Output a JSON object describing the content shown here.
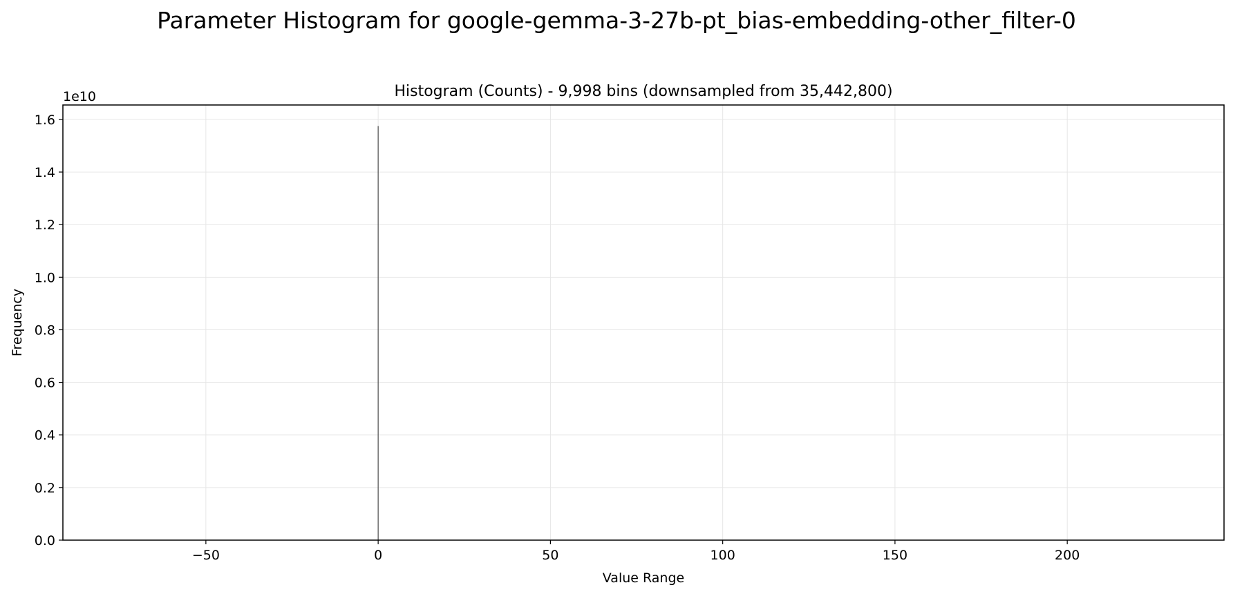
{
  "figure_title": "Parameter Histogram for google-gemma-3-27b-pt_bias-embedding-other_filter-0",
  "chart_data": {
    "type": "bar",
    "title": "Histogram (Counts) - 9,998 bins (downsampled from 35,442,800)",
    "xlabel": "Value Range",
    "ylabel": "Frequency",
    "y_offset_label": "1e10",
    "xlim": [
      -91.5,
      245.5
    ],
    "ylim": [
      0,
      1.655
    ],
    "x_ticks": [
      -50,
      0,
      50,
      100,
      150,
      200
    ],
    "x_tick_labels": [
      "−50",
      "0",
      "50",
      "100",
      "150",
      "200"
    ],
    "y_ticks": [
      0.0,
      0.2,
      0.4,
      0.6,
      0.8,
      1.0,
      1.2,
      1.4,
      1.6
    ],
    "y_tick_labels": [
      "0.0",
      "0.2",
      "0.4",
      "0.6",
      "0.8",
      "1.0",
      "1.2",
      "1.4",
      "1.6"
    ],
    "grid": true,
    "bars": [
      {
        "x": 0.0,
        "value": 1.575
      }
    ],
    "colors": {
      "bar": "#4d4d4d",
      "grid": "#e6e6e6",
      "axis": "#000000"
    }
  }
}
